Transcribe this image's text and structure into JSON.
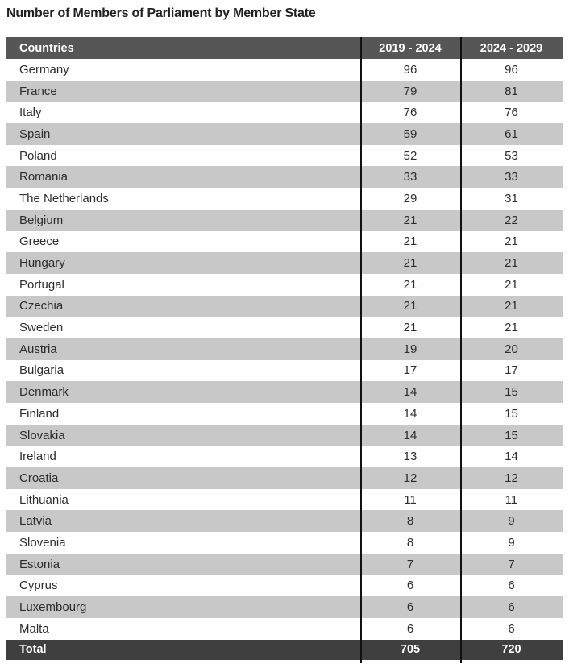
{
  "title": "Number of Members of Parliament by Member State",
  "chart_data": {
    "type": "table",
    "title": "Number of Members of Parliament by Member State",
    "columns": [
      "Countries",
      "2019 - 2024",
      "2024 - 2029"
    ],
    "rows": [
      [
        "Germany",
        96,
        96
      ],
      [
        "France",
        79,
        81
      ],
      [
        "Italy",
        76,
        76
      ],
      [
        "Spain",
        59,
        61
      ],
      [
        "Poland",
        52,
        53
      ],
      [
        "Romania",
        33,
        33
      ],
      [
        "The Netherlands",
        29,
        31
      ],
      [
        "Belgium",
        21,
        22
      ],
      [
        "Greece",
        21,
        21
      ],
      [
        "Hungary",
        21,
        21
      ],
      [
        "Portugal",
        21,
        21
      ],
      [
        "Czechia",
        21,
        21
      ],
      [
        "Sweden",
        21,
        21
      ],
      [
        "Austria",
        19,
        20
      ],
      [
        "Bulgaria",
        17,
        17
      ],
      [
        "Denmark",
        14,
        15
      ],
      [
        "Finland",
        14,
        15
      ],
      [
        "Slovakia",
        14,
        15
      ],
      [
        "Ireland",
        13,
        14
      ],
      [
        "Croatia",
        12,
        12
      ],
      [
        "Lithuania",
        11,
        11
      ],
      [
        "Latvia",
        8,
        9
      ],
      [
        "Slovenia",
        8,
        9
      ],
      [
        "Estonia",
        7,
        7
      ],
      [
        "Cyprus",
        6,
        6
      ],
      [
        "Luxembourg",
        6,
        6
      ],
      [
        "Malta",
        6,
        6
      ]
    ],
    "total": {
      "label": "Total",
      "values": [
        705,
        720
      ]
    },
    "layout": {
      "striped": true,
      "stripe_start": "white",
      "grid": "vertical-only"
    }
  },
  "colors": {
    "header_bg": "#565656",
    "total_bg": "#3f3f3f",
    "alt_row_bg": "#c8c8c8",
    "row_bg": "#ffffff",
    "header_text": "#ffffff",
    "body_text": "#2d2d2d",
    "column_line": "#111111"
  }
}
